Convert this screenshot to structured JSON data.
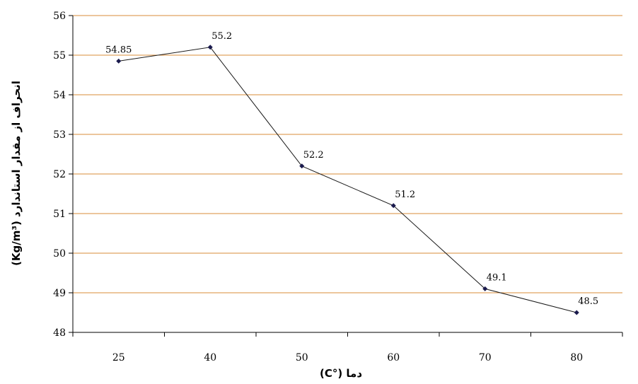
{
  "chart_data": {
    "type": "line",
    "categories": [
      "25",
      "40",
      "50",
      "60",
      "70",
      "80"
    ],
    "series": [
      {
        "values": [
          54.85,
          55.2,
          52.2,
          51.2,
          49.1,
          48.5
        ]
      }
    ],
    "data_labels": [
      "54.85",
      "55.2",
      "52.2",
      "51.2",
      "49.1",
      "48.5"
    ],
    "xlabel": "دما (°C)",
    "ylabel": "انحراف از مقدار استاندارد (Kg/m³)",
    "ylim": [
      48,
      56
    ],
    "yticks": [
      "48",
      "49",
      "50",
      "51",
      "52",
      "53",
      "54",
      "55",
      "56"
    ],
    "grid": true,
    "legend": "none",
    "colors": {
      "gridline": "#d98c3a",
      "line": "#1a1a1a",
      "marker": "#1a1a4d",
      "axis": "#000000"
    }
  }
}
